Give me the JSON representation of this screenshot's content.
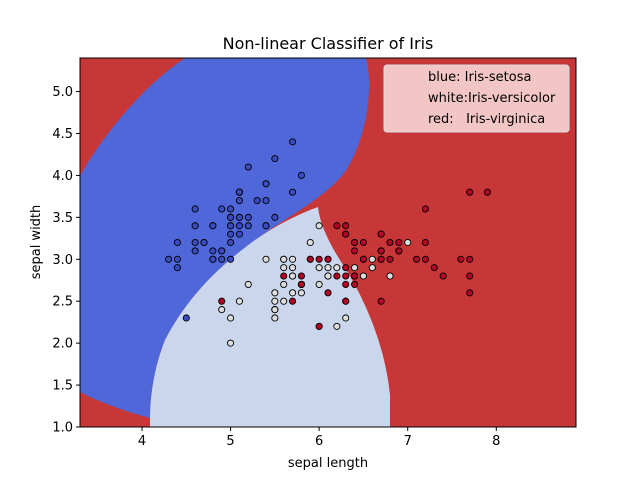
{
  "chart_data": {
    "type": "scatter",
    "title": "Non-linear Classifier of Iris",
    "xlabel": "sepal length",
    "ylabel": "sepal width",
    "xlim": [
      3.3,
      8.9
    ],
    "ylim": [
      1.0,
      5.4
    ],
    "xticks": [
      "4",
      "5",
      "6",
      "7",
      "8"
    ],
    "xtick_values": [
      4,
      5,
      6,
      7,
      8
    ],
    "yticks": [
      "1.0",
      "1.5",
      "2.0",
      "2.5",
      "3.0",
      "3.5",
      "4.0",
      "4.5",
      "5.0"
    ],
    "ytick_values": [
      1.0,
      1.5,
      2.0,
      2.5,
      3.0,
      3.5,
      4.0,
      4.5,
      5.0
    ],
    "grid": false,
    "legend_position": "top-right",
    "legend": [
      {
        "text": "blue: Iris-setosa"
      },
      {
        "text": "white:Iris-versicolor"
      },
      {
        "text": "red:   Iris-virginica"
      }
    ],
    "colors": {
      "region_red": "#c83737",
      "region_blue": "#4f67d9",
      "region_light": "#cad6ec",
      "point_blue": "#3b4cc0",
      "point_white": "#dddddd",
      "point_red": "#b40426",
      "legend_bg": "#f7d6d6"
    },
    "series": [
      {
        "name": "Iris-setosa",
        "color": "blue",
        "points": [
          [
            5.1,
            3.5
          ],
          [
            4.9,
            3.0
          ],
          [
            4.7,
            3.2
          ],
          [
            4.6,
            3.1
          ],
          [
            5.0,
            3.6
          ],
          [
            5.4,
            3.9
          ],
          [
            4.6,
            3.4
          ],
          [
            5.0,
            3.4
          ],
          [
            4.4,
            2.9
          ],
          [
            4.9,
            3.1
          ],
          [
            5.4,
            3.7
          ],
          [
            4.8,
            3.4
          ],
          [
            4.8,
            3.0
          ],
          [
            4.3,
            3.0
          ],
          [
            5.8,
            4.0
          ],
          [
            5.7,
            4.4
          ],
          [
            5.4,
            3.9
          ],
          [
            5.1,
            3.5
          ],
          [
            5.7,
            3.8
          ],
          [
            5.1,
            3.8
          ],
          [
            5.4,
            3.4
          ],
          [
            5.1,
            3.7
          ],
          [
            4.6,
            3.6
          ],
          [
            5.1,
            3.3
          ],
          [
            4.8,
            3.4
          ],
          [
            5.0,
            3.0
          ],
          [
            5.0,
            3.4
          ],
          [
            5.2,
            3.5
          ],
          [
            5.2,
            3.4
          ],
          [
            4.7,
            3.2
          ],
          [
            4.8,
            3.1
          ],
          [
            5.4,
            3.4
          ],
          [
            5.2,
            4.1
          ],
          [
            5.5,
            4.2
          ],
          [
            4.9,
            3.1
          ],
          [
            5.0,
            3.2
          ],
          [
            5.5,
            3.5
          ],
          [
            4.9,
            3.6
          ],
          [
            4.4,
            3.0
          ],
          [
            5.1,
            3.4
          ],
          [
            5.0,
            3.5
          ],
          [
            4.5,
            2.3
          ],
          [
            4.4,
            3.2
          ],
          [
            5.0,
            3.5
          ],
          [
            5.1,
            3.8
          ],
          [
            4.8,
            3.0
          ],
          [
            5.1,
            3.8
          ],
          [
            4.6,
            3.2
          ],
          [
            5.3,
            3.7
          ],
          [
            5.0,
            3.3
          ]
        ]
      },
      {
        "name": "Iris-versicolor",
        "color": "white",
        "points": [
          [
            7.0,
            3.2
          ],
          [
            6.4,
            3.2
          ],
          [
            6.9,
            3.1
          ],
          [
            5.5,
            2.3
          ],
          [
            6.5,
            2.8
          ],
          [
            5.7,
            2.8
          ],
          [
            6.3,
            3.3
          ],
          [
            4.9,
            2.4
          ],
          [
            6.6,
            2.9
          ],
          [
            5.2,
            2.7
          ],
          [
            5.0,
            2.0
          ],
          [
            5.9,
            3.0
          ],
          [
            6.0,
            2.2
          ],
          [
            6.1,
            2.9
          ],
          [
            5.6,
            2.9
          ],
          [
            6.7,
            3.1
          ],
          [
            5.6,
            3.0
          ],
          [
            5.8,
            2.7
          ],
          [
            6.2,
            2.2
          ],
          [
            5.6,
            2.5
          ],
          [
            5.9,
            3.2
          ],
          [
            6.1,
            2.8
          ],
          [
            6.3,
            2.5
          ],
          [
            6.1,
            2.8
          ],
          [
            6.4,
            2.9
          ],
          [
            6.6,
            3.0
          ],
          [
            6.8,
            2.8
          ],
          [
            6.7,
            3.0
          ],
          [
            6.0,
            2.9
          ],
          [
            5.7,
            2.6
          ],
          [
            5.5,
            2.4
          ],
          [
            5.5,
            2.4
          ],
          [
            5.8,
            2.7
          ],
          [
            6.0,
            2.7
          ],
          [
            5.4,
            3.0
          ],
          [
            6.0,
            3.4
          ],
          [
            6.7,
            3.1
          ],
          [
            6.3,
            2.3
          ],
          [
            5.6,
            3.0
          ],
          [
            5.5,
            2.5
          ],
          [
            5.5,
            2.6
          ],
          [
            6.1,
            3.0
          ],
          [
            5.8,
            2.6
          ],
          [
            5.0,
            2.3
          ],
          [
            5.6,
            2.7
          ],
          [
            5.7,
            3.0
          ],
          [
            5.7,
            2.9
          ],
          [
            6.2,
            2.9
          ],
          [
            5.1,
            2.5
          ],
          [
            5.7,
            2.8
          ]
        ]
      },
      {
        "name": "Iris-virginica",
        "color": "red",
        "points": [
          [
            6.3,
            3.3
          ],
          [
            5.8,
            2.7
          ],
          [
            7.1,
            3.0
          ],
          [
            6.3,
            2.9
          ],
          [
            6.5,
            3.0
          ],
          [
            7.6,
            3.0
          ],
          [
            4.9,
            2.5
          ],
          [
            7.3,
            2.9
          ],
          [
            6.7,
            2.5
          ],
          [
            7.2,
            3.6
          ],
          [
            6.5,
            3.2
          ],
          [
            6.4,
            2.7
          ],
          [
            6.8,
            3.0
          ],
          [
            5.7,
            2.5
          ],
          [
            5.8,
            2.8
          ],
          [
            6.4,
            3.2
          ],
          [
            6.5,
            3.0
          ],
          [
            7.7,
            3.8
          ],
          [
            7.7,
            2.6
          ],
          [
            6.0,
            2.2
          ],
          [
            6.9,
            3.2
          ],
          [
            5.6,
            2.8
          ],
          [
            7.7,
            2.8
          ],
          [
            6.3,
            2.7
          ],
          [
            6.7,
            3.3
          ],
          [
            7.2,
            3.2
          ],
          [
            6.2,
            2.8
          ],
          [
            6.1,
            3.0
          ],
          [
            6.4,
            2.8
          ],
          [
            7.2,
            3.0
          ],
          [
            7.4,
            2.8
          ],
          [
            7.9,
            3.8
          ],
          [
            6.4,
            2.8
          ],
          [
            6.3,
            2.8
          ],
          [
            6.1,
            2.6
          ],
          [
            7.7,
            3.0
          ],
          [
            6.3,
            3.4
          ],
          [
            6.4,
            3.1
          ],
          [
            6.0,
            3.0
          ],
          [
            6.9,
            3.1
          ],
          [
            6.7,
            3.1
          ],
          [
            6.9,
            3.1
          ],
          [
            5.8,
            2.7
          ],
          [
            6.8,
            3.2
          ],
          [
            6.7,
            3.3
          ],
          [
            6.7,
            3.0
          ],
          [
            6.3,
            2.5
          ],
          [
            6.5,
            3.0
          ],
          [
            6.2,
            3.4
          ],
          [
            5.9,
            3.0
          ]
        ]
      }
    ]
  }
}
